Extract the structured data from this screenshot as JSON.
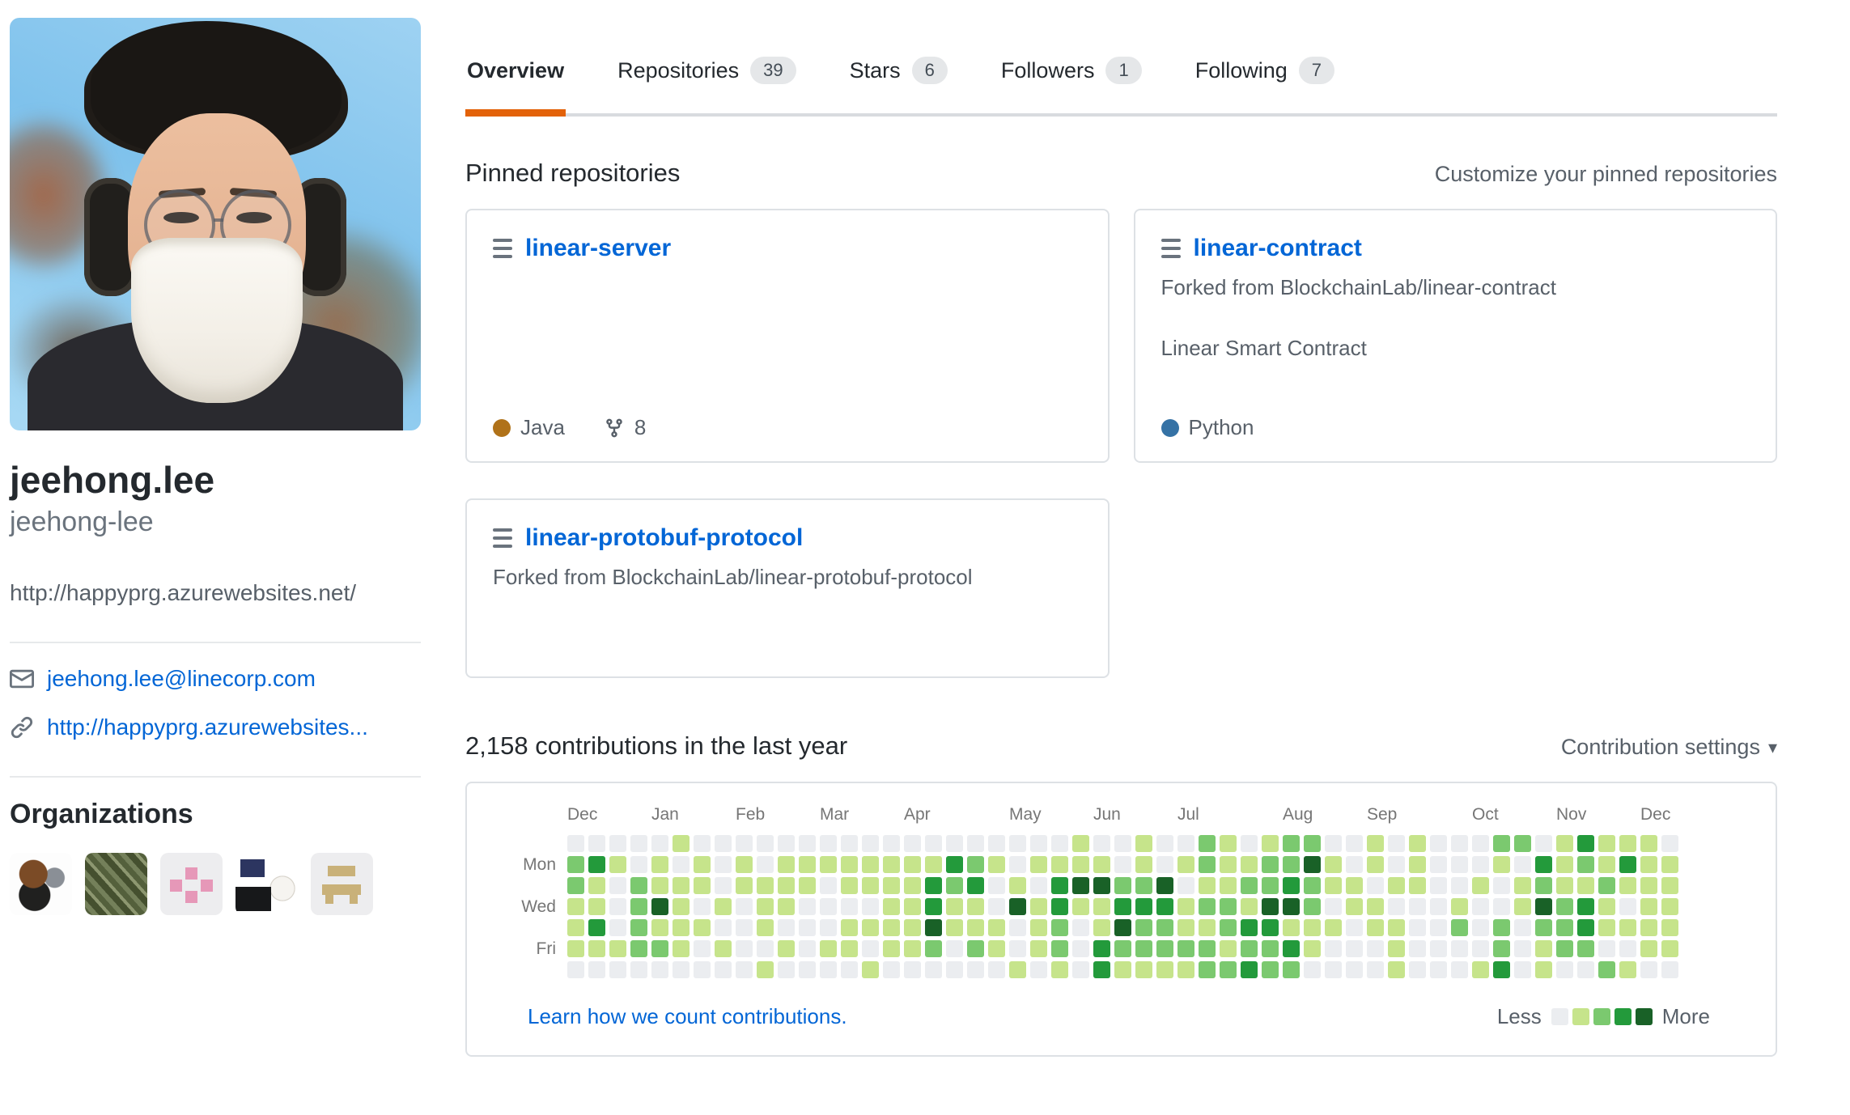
{
  "profile": {
    "name": "jeehong.lee",
    "username": "jeehong-lee",
    "website": "http://happyprg.azurewebsites.net/",
    "email": "jeehong.lee@linecorp.com",
    "blog": "http://happyprg.azurewebsites..."
  },
  "tabs": {
    "items": [
      {
        "label": "Overview",
        "count": "",
        "active": true
      },
      {
        "label": "Repositories",
        "count": "39",
        "active": false
      },
      {
        "label": "Stars",
        "count": "6",
        "active": false
      },
      {
        "label": "Followers",
        "count": "1",
        "active": false
      },
      {
        "label": "Following",
        "count": "7",
        "active": false
      }
    ]
  },
  "pinned": {
    "title": "Pinned repositories",
    "customize": "Customize your pinned repositories",
    "repos": [
      {
        "name": "linear-server",
        "language": "Java",
        "language_color": "#b07219",
        "forks": "8"
      },
      {
        "name": "linear-contract",
        "forked_from": "Forked from BlockchainLab/linear-contract",
        "description": "Linear Smart Contract",
        "language": "Python",
        "language_color": "#3572a5"
      },
      {
        "name": "linear-protobuf-protocol",
        "forked_from": "Forked from BlockchainLab/linear-protobuf-protocol"
      }
    ]
  },
  "contributions": {
    "heading": "2,158 contributions in the last year",
    "settings_label": "Contribution settings",
    "learn_link": "Learn how we count contributions.",
    "legend": {
      "less": "Less",
      "more": "More",
      "colors": [
        "#ebedf0",
        "#c6e48b",
        "#7bc96f",
        "#239a3b",
        "#196127"
      ]
    },
    "cell_colors": [
      "#ebedf0",
      "#c6e48b",
      "#7bc96f",
      "#239a3b",
      "#196127"
    ],
    "months": [
      {
        "label": "Dec",
        "col": 0
      },
      {
        "label": "Jan",
        "col": 4
      },
      {
        "label": "Feb",
        "col": 8
      },
      {
        "label": "Mar",
        "col": 12
      },
      {
        "label": "Apr",
        "col": 16
      },
      {
        "label": "May",
        "col": 21
      },
      {
        "label": "Jun",
        "col": 25
      },
      {
        "label": "Jul",
        "col": 29
      },
      {
        "label": "Aug",
        "col": 34
      },
      {
        "label": "Sep",
        "col": 38
      },
      {
        "label": "Oct",
        "col": 43
      },
      {
        "label": "Nov",
        "col": 47
      },
      {
        "label": "Dec",
        "col": 51,
        "span": 2
      }
    ],
    "day_labels": [
      "",
      "Mon",
      "",
      "Wed",
      "",
      "Fri",
      ""
    ],
    "grid_rows": [
      "00000100000000000000000010010021012200101000220131110",
      "23101010101111111132101111010121122410101000103121311",
      "21021110111101111323010344224011223211011001012112111",
      "11024101011000011311041311333122144201100010014231011",
      "13021110010001111411101201422112331110110020202231111",
      "11122101001011011202101203222221223100010000201220011",
      "00000000010000100000010103111122322000010001301002100"
    ]
  },
  "organizations": {
    "title": "Organizations",
    "avatars": [
      "bear-character",
      "money-photo",
      "pink-squares",
      "rabbit-computer",
      "tan-blocks"
    ]
  },
  "icons": {
    "caret_down": "▾"
  }
}
